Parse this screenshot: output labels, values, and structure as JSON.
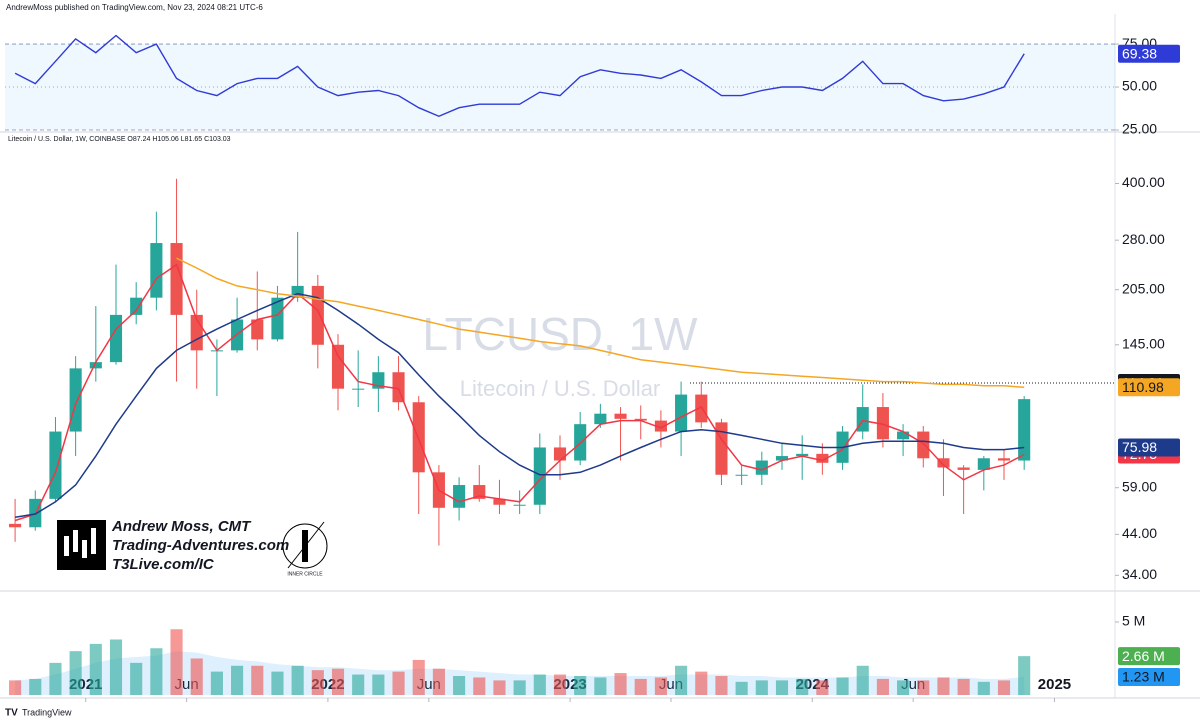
{
  "header": "AndrewMoss published on TradingView.com, Nov 23, 2024 08:21 UTC-6",
  "symbol_line": "Litecoin / U.S. Dollar, 1W, COINBASE  O87.24  H105.06  L81.65  C103.03",
  "watermark": {
    "symbol": "LTCUSD, 1W",
    "name": "Litecoin / U.S. Dollar"
  },
  "branding": {
    "author": "Andrew Moss, CMT",
    "site": "Trading-Adventures.com",
    "link": "T3Live.com/IC",
    "logo_text": "INNER CIRCLE",
    "footer": "TradingView"
  },
  "chart_data": [
    {
      "type": "line",
      "values": [
        58,
        52,
        65,
        78,
        70,
        80,
        70,
        75,
        55,
        48,
        45,
        52,
        55,
        55,
        62,
        50,
        45,
        47,
        48,
        45,
        38,
        33,
        38,
        40,
        40,
        40,
        47,
        45,
        56,
        60,
        58,
        57,
        55,
        60,
        53,
        45,
        45,
        48,
        50,
        50,
        48,
        55,
        65,
        52,
        52,
        45,
        42,
        43,
        46,
        50,
        69.38
      ],
      "color": "#2f3bd6",
      "ylim": [
        25,
        89
      ],
      "yticks": [
        {
          "value": 25,
          "label": "25.00"
        },
        {
          "value": 50,
          "label": "50.00"
        },
        {
          "value": 75,
          "label": "75.00"
        }
      ]
    },
    {
      "type": "candlestick",
      "x": [
        "2020-09",
        "2020-10",
        "2020-11",
        "2020-12",
        "2021-01",
        "2021-02",
        "2021-03",
        "2021-04",
        "2021-05",
        "2021-06",
        "2021-07",
        "2021-08",
        "2021-09",
        "2021-10",
        "2021-11",
        "2021-12",
        "2022-01",
        "2022-02",
        "2022-03",
        "2022-04",
        "2022-05",
        "2022-06",
        "2022-07",
        "2022-08",
        "2022-09",
        "2022-10",
        "2022-11",
        "2022-12",
        "2023-01",
        "2023-02",
        "2023-03",
        "2023-04",
        "2023-05",
        "2023-06",
        "2023-07",
        "2023-08",
        "2023-09",
        "2023-10",
        "2023-11",
        "2023-12",
        "2024-01",
        "2024-02",
        "2024-03",
        "2024-04",
        "2024-05",
        "2024-06",
        "2024-07",
        "2024-08",
        "2024-09",
        "2024-10",
        "2024-11"
      ],
      "open": [
        47,
        46,
        55,
        84,
        125,
        130,
        175,
        195,
        275,
        175,
        140,
        140,
        170,
        150,
        195,
        210,
        145,
        110,
        110,
        122,
        101,
        65,
        52,
        60,
        55,
        53,
        53,
        76,
        70,
        88,
        94,
        91,
        90,
        84,
        106,
        89,
        64,
        64,
        70,
        72,
        73,
        69,
        84,
        98,
        80,
        84,
        71,
        67,
        66,
        71,
        70
      ],
      "high": [
        55,
        58,
        92,
        135,
        185,
        240,
        215,
        335,
        412,
        205,
        150,
        195,
        230,
        210,
        295,
        225,
        155,
        140,
        135,
        135,
        105,
        68,
        63,
        68,
        62,
        58,
        83,
        82,
        95,
        100,
        98,
        99,
        96,
        115,
        115,
        91,
        68,
        74,
        78,
        82,
        78,
        87,
        113,
        107,
        88,
        87,
        80,
        68,
        72,
        75,
        105
      ],
      "low": [
        42,
        45,
        54,
        72,
        115,
        128,
        165,
        180,
        115,
        110,
        105,
        138,
        140,
        148,
        190,
        125,
        96,
        98,
        95,
        96,
        50,
        41,
        48,
        54,
        50,
        50,
        50,
        62,
        68,
        86,
        70,
        80,
        76,
        72,
        86,
        60,
        60,
        60,
        66,
        62,
        64,
        66,
        80,
        76,
        72,
        67,
        56,
        50,
        58,
        62,
        66
      ],
      "close": [
        46,
        55,
        84,
        125,
        130,
        175,
        195,
        275,
        175,
        140,
        140,
        170,
        150,
        195,
        210,
        145,
        110,
        110,
        122,
        101,
        65,
        52,
        60,
        55,
        53,
        53,
        76,
        70,
        88,
        94,
        91,
        90,
        84,
        106,
        89,
        64,
        64,
        70,
        72,
        73,
        69,
        84,
        98,
        80,
        84,
        71,
        67,
        66,
        71,
        70,
        103
      ],
      "up_color": "#26a69a",
      "down_color": "#ef5350",
      "series": [
        {
          "color": "#f23645",
          "values": [
            48,
            50,
            65,
            100,
            130,
            160,
            180,
            220,
            240,
            170,
            140,
            155,
            170,
            175,
            200,
            180,
            135,
            115,
            112,
            110,
            80,
            58,
            54,
            56,
            55,
            54,
            62,
            70,
            78,
            88,
            90,
            90,
            86,
            92,
            98,
            80,
            68,
            66,
            70,
            72,
            70,
            75,
            90,
            88,
            84,
            78,
            68,
            62,
            66,
            68,
            72.73
          ]
        },
        {
          "color": "#1e3a8a",
          "values": [
            49,
            50,
            54,
            60,
            72,
            88,
            105,
            125,
            140,
            150,
            160,
            170,
            180,
            190,
            200,
            195,
            180,
            165,
            150,
            138,
            120,
            105,
            93,
            82,
            74,
            68,
            64,
            64,
            65,
            68,
            72,
            76,
            80,
            84,
            85,
            84,
            82,
            80,
            78,
            77,
            76,
            76,
            78,
            79,
            79,
            79,
            78,
            76,
            75,
            75,
            75.98
          ]
        },
        {
          "color": "#f5a623",
          "values": [
            null,
            null,
            null,
            null,
            null,
            null,
            null,
            null,
            250,
            235,
            220,
            210,
            205,
            200,
            197,
            193,
            190,
            185,
            180,
            175,
            170,
            165,
            160,
            157,
            154,
            151,
            148,
            146,
            144,
            140,
            136,
            132,
            130,
            128,
            126,
            124,
            122,
            121,
            120,
            119,
            118,
            117,
            116,
            115,
            115,
            114,
            113,
            113,
            112,
            112,
            110.98
          ]
        }
      ],
      "reference_line": 114.01,
      "log_scale": true,
      "ylim": [
        31,
        553
      ],
      "yticks": [
        {
          "value": 34,
          "label": "34.00"
        },
        {
          "value": 44,
          "label": "44.00"
        },
        {
          "value": 59,
          "label": "59.00"
        },
        {
          "value": 145,
          "label": "145.00"
        },
        {
          "value": 205,
          "label": "205.00"
        },
        {
          "value": 280,
          "label": "280.00"
        },
        {
          "value": 400,
          "label": "400.00"
        }
      ],
      "xlim": [
        "2020-09",
        "2025-04"
      ],
      "xticks": [
        {
          "value": "2021-01",
          "label": "2021"
        },
        {
          "value": "2021-06",
          "label": "Jun"
        },
        {
          "value": "2022-01",
          "label": "2022"
        },
        {
          "value": "2022-06",
          "label": "Jun"
        },
        {
          "value": "2023-01",
          "label": "2023"
        },
        {
          "value": "2023-06",
          "label": "Jun"
        },
        {
          "value": "2024-01",
          "label": "2024"
        },
        {
          "value": "2024-06",
          "label": "Jun"
        },
        {
          "value": "2025-01",
          "label": "2025"
        }
      ]
    },
    {
      "type": "bar",
      "values": [
        1000000,
        1100000,
        2200000,
        3000000,
        3500000,
        3800000,
        2200000,
        3200000,
        4500000,
        2500000,
        1600000,
        2000000,
        2000000,
        1600000,
        2000000,
        1700000,
        1800000,
        1400000,
        1400000,
        1600000,
        2400000,
        1800000,
        1300000,
        1200000,
        1000000,
        1000000,
        1400000,
        1400000,
        1300000,
        1200000,
        1500000,
        1100000,
        1200000,
        2000000,
        1600000,
        1300000,
        900000,
        1000000,
        1000000,
        1100000,
        1000000,
        1200000,
        2000000,
        1100000,
        1000000,
        1000000,
        1200000,
        1100000,
        900000,
        1000000,
        2660000
      ],
      "value_labels": [
        null,
        null,
        null,
        null,
        null,
        null,
        null,
        null,
        null,
        null,
        null,
        null,
        null,
        null,
        null,
        null,
        null,
        null,
        null,
        null,
        null,
        null,
        null,
        null,
        null,
        null,
        null,
        null,
        null,
        null,
        null,
        null,
        null,
        null,
        null,
        null,
        null,
        null,
        null,
        null,
        null,
        null,
        null,
        null,
        null,
        null,
        null,
        null,
        null,
        null,
        "2.66 M"
      ],
      "ma": {
        "color": "#2196f3",
        "values": [
          1000000,
          1100000,
          1400000,
          1800000,
          2200000,
          2500000,
          2600000,
          2700000,
          3000000,
          2900000,
          2600000,
          2400000,
          2300000,
          2100000,
          2000000,
          1900000,
          1900000,
          1800000,
          1700000,
          1700000,
          1800000,
          1800000,
          1700000,
          1600000,
          1500000,
          1400000,
          1400000,
          1300000,
          1300000,
          1300000,
          1300000,
          1300000,
          1300000,
          1400000,
          1400000,
          1400000,
          1300000,
          1300000,
          1200000,
          1200000,
          1200000,
          1200000,
          1300000,
          1300000,
          1200000,
          1200000,
          1200000,
          1200000,
          1100000,
          1100000,
          1230000
        ],
        "label": "1.23 M"
      },
      "ylim": [
        0,
        7050000
      ],
      "yticks": [
        {
          "value": 5000000,
          "label": "5 M"
        }
      ]
    }
  ]
}
